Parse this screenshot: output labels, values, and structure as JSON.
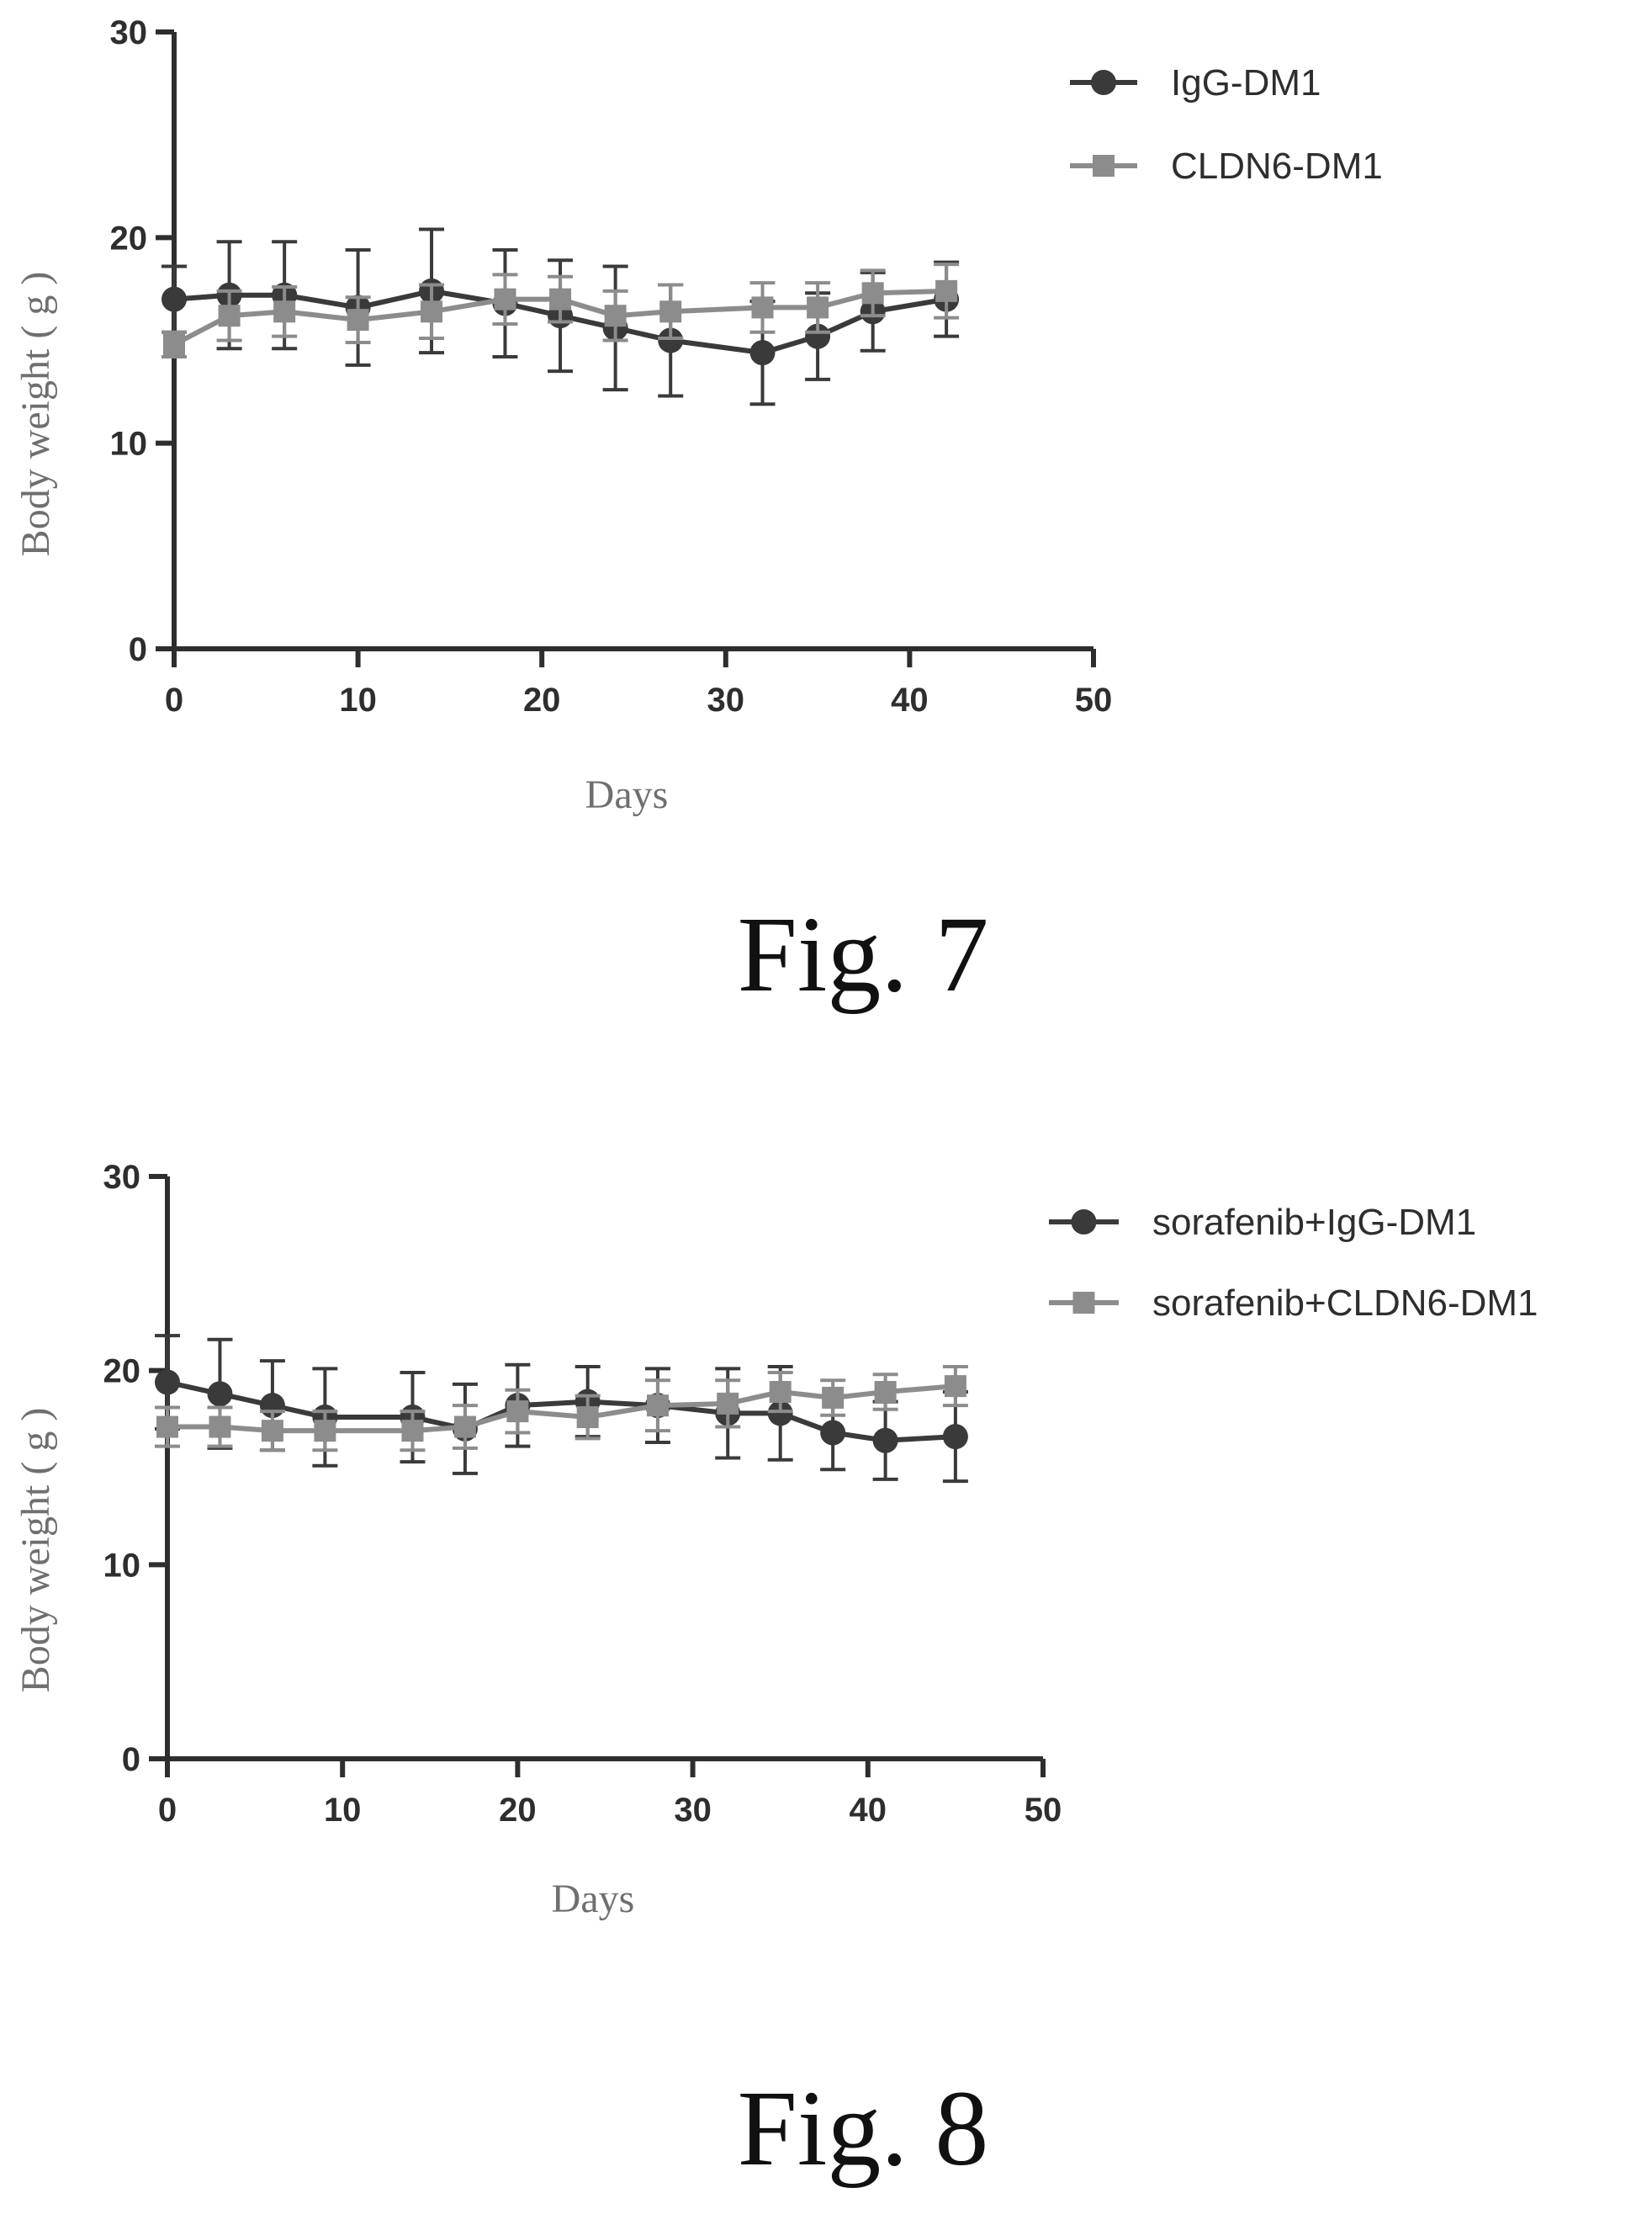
{
  "chart_data": [
    {
      "type": "line",
      "caption": "Fig. 7",
      "xlabel": "Days",
      "ylabel": "Body weight ( g )",
      "xlim": [
        0,
        50
      ],
      "ylim": [
        0,
        30
      ],
      "xticks": [
        0,
        10,
        20,
        30,
        40,
        50
      ],
      "yticks": [
        0,
        10,
        20,
        30
      ],
      "grid": false,
      "legend_position": "top-right",
      "series": [
        {
          "name": "IgG-DM1",
          "marker": "circle",
          "color": "#3a3a3a",
          "x": [
            0,
            3,
            6,
            10,
            14,
            18,
            21,
            24,
            27,
            32,
            35,
            38,
            42
          ],
          "y": [
            17.0,
            17.2,
            17.2,
            16.6,
            17.4,
            16.8,
            16.2,
            15.6,
            15.0,
            14.4,
            15.2,
            16.4,
            17.0
          ],
          "error": [
            1.6,
            2.6,
            2.6,
            2.8,
            3.0,
            2.6,
            2.7,
            3.0,
            2.7,
            2.5,
            2.1,
            1.9,
            1.8
          ]
        },
        {
          "name": "CLDN6-DM1",
          "marker": "square",
          "color": "#8c8c8c",
          "x": [
            0,
            3,
            6,
            10,
            14,
            18,
            21,
            24,
            27,
            32,
            35,
            38,
            42
          ],
          "y": [
            14.8,
            16.2,
            16.4,
            16.0,
            16.4,
            17.0,
            17.0,
            16.2,
            16.4,
            16.6,
            16.6,
            17.3,
            17.4
          ],
          "error": [
            0.6,
            1.2,
            1.2,
            1.1,
            1.3,
            1.2,
            1.1,
            1.2,
            1.3,
            1.2,
            1.2,
            1.1,
            1.3
          ]
        }
      ]
    },
    {
      "type": "line",
      "caption": "Fig. 8",
      "xlabel": "Days",
      "ylabel": "Body weight ( g )",
      "xlim": [
        0,
        50
      ],
      "ylim": [
        0,
        30
      ],
      "xticks": [
        0,
        10,
        20,
        30,
        40,
        50
      ],
      "yticks": [
        0,
        10,
        20,
        30
      ],
      "grid": false,
      "legend_position": "top-right",
      "series": [
        {
          "name": "sorafenib+IgG-DM1",
          "marker": "circle",
          "color": "#3a3a3a",
          "x": [
            0,
            3,
            6,
            9,
            14,
            17,
            20,
            24,
            28,
            32,
            35,
            38,
            41,
            45
          ],
          "y": [
            19.4,
            18.8,
            18.2,
            17.6,
            17.6,
            17.0,
            18.2,
            18.4,
            18.2,
            17.8,
            17.8,
            16.8,
            16.4,
            16.6
          ],
          "error": [
            2.4,
            2.8,
            2.3,
            2.5,
            2.3,
            2.3,
            2.1,
            1.8,
            1.9,
            2.3,
            2.4,
            1.9,
            2.0,
            2.3
          ]
        },
        {
          "name": "sorafenib+CLDN6-DM1",
          "marker": "square",
          "color": "#8c8c8c",
          "x": [
            0,
            3,
            6,
            9,
            14,
            17,
            20,
            24,
            28,
            32,
            35,
            38,
            41,
            45
          ],
          "y": [
            17.1,
            17.1,
            16.9,
            16.9,
            16.9,
            17.1,
            17.9,
            17.6,
            18.2,
            18.3,
            18.9,
            18.6,
            18.9,
            19.2
          ],
          "error": [
            1.0,
            1.0,
            1.0,
            1.0,
            1.0,
            1.1,
            1.1,
            1.1,
            1.3,
            1.2,
            1.0,
            0.9,
            0.9,
            1.0
          ]
        }
      ]
    }
  ]
}
